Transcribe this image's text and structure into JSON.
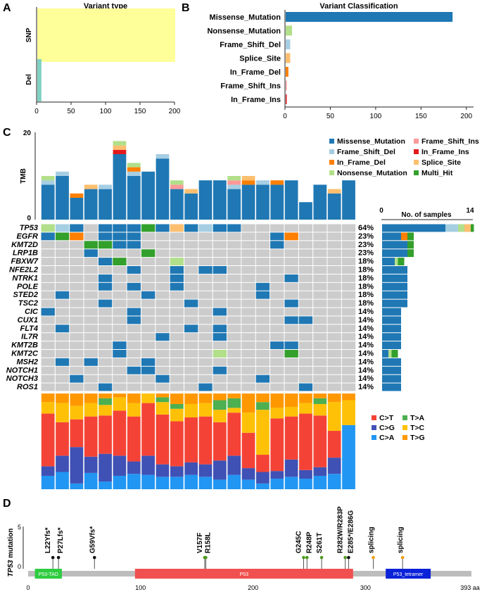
{
  "panel_letters": [
    "A",
    "B",
    "C",
    "D"
  ],
  "chart_data": [
    {
      "id": "variant_type",
      "type": "bar",
      "orientation": "horizontal",
      "title": "Variant type",
      "categories": [
        "SNP",
        "Del"
      ],
      "values": [
        200,
        6
      ],
      "colors": [
        "#ffff99",
        "#7fd1c2"
      ],
      "xlim": [
        0,
        200
      ],
      "xticks": [
        "0",
        "50",
        "100",
        "150",
        "200"
      ]
    },
    {
      "id": "variant_classification",
      "type": "bar",
      "orientation": "horizontal",
      "title": "Variant Classification",
      "categories": [
        "Missense_Mutation",
        "Nonsense_Mutation",
        "Frame_Shift_Del",
        "Splice_Site",
        "In_Frame_Del",
        "Frame_Shift_Ins",
        "In_Frame_Ins"
      ],
      "values": [
        184,
        7,
        5,
        5,
        3,
        1,
        1
      ],
      "colors": [
        "#1f78b4",
        "#b2df8a",
        "#a6cee3",
        "#fdbf6f",
        "#ff7f00",
        "#fb9a99",
        "#e31a1c"
      ],
      "xlim": [
        0,
        200
      ],
      "xticks": [
        "0",
        "50",
        "100",
        "150",
        "200"
      ]
    },
    {
      "id": "tmb",
      "type": "bar",
      "stacked": true,
      "ylabel": "TMB",
      "yticks": [
        "0",
        "20"
      ],
      "ylim": [
        0,
        20
      ],
      "samples": 22,
      "series": [
        {
          "name": "Missense_Mutation",
          "color": "#1f78b4",
          "values": [
            8,
            10,
            5,
            7,
            7,
            15,
            10,
            11,
            14,
            7,
            6,
            9,
            9,
            7,
            8,
            8,
            8,
            9,
            4,
            8,
            6,
            9
          ]
        },
        {
          "name": "Frame_Shift_Del",
          "color": "#a6cee3",
          "values": [
            1,
            1,
            0,
            0,
            1,
            0,
            1,
            0,
            1,
            0,
            0,
            0,
            0,
            1,
            0,
            1,
            0,
            0,
            0,
            0,
            0,
            0
          ]
        },
        {
          "name": "In_Frame_Del",
          "color": "#ff7f00",
          "values": [
            0,
            0,
            1,
            0,
            0,
            0,
            1,
            0,
            0,
            0,
            0,
            0,
            0,
            0,
            1,
            0,
            1,
            0,
            0,
            0,
            0,
            0
          ]
        },
        {
          "name": "Frame_Shift_Ins",
          "color": "#fb9a99",
          "values": [
            0,
            0,
            0,
            0,
            0,
            0,
            0,
            0,
            0,
            1,
            0,
            0,
            0,
            1,
            0,
            0,
            0,
            0,
            0,
            0,
            0,
            0
          ]
        },
        {
          "name": "In_Frame_Ins",
          "color": "#e31a1c",
          "values": [
            0,
            0,
            0,
            0,
            0,
            1,
            0,
            0,
            0,
            0,
            0,
            0,
            0,
            0,
            0,
            0,
            0,
            0,
            0,
            0,
            0,
            0
          ]
        },
        {
          "name": "Splice_Site",
          "color": "#fdbf6f",
          "values": [
            0,
            0,
            0,
            1,
            0,
            1,
            0,
            0,
            0,
            0,
            1,
            0,
            0,
            0,
            1,
            0,
            0,
            0,
            0,
            0,
            1,
            0
          ]
        },
        {
          "name": "Nonsense_Mutation",
          "color": "#b2df8a",
          "values": [
            1,
            0,
            0,
            0,
            0,
            1,
            1,
            0,
            0,
            1,
            0,
            0,
            0,
            1,
            0,
            0,
            0,
            0,
            0,
            0,
            0,
            0
          ]
        },
        {
          "name": "Multi_Hit",
          "color": "#33a02c",
          "values": [
            0,
            0,
            0,
            0,
            0,
            0,
            0,
            0,
            0,
            0,
            0,
            0,
            0,
            0,
            0,
            0,
            0,
            0,
            0,
            0,
            0,
            0
          ]
        }
      ],
      "legend": [
        "Missense_Mutation",
        "Frame_Shift_Ins",
        "Frame_Shift_Del",
        "In_Frame_Ins",
        "In_Frame_Del",
        "Splice_Site",
        "Nonsense_Mutation",
        "Multi_Hit"
      ]
    },
    {
      "id": "oncoplot",
      "type": "heatmap",
      "genes": [
        "TP53",
        "EGFR",
        "KMT2D",
        "LRP1B",
        "FBXW7",
        "NFE2L2",
        "NTRK1",
        "POLE",
        "STED2",
        "TSC2",
        "CIC",
        "CUX1",
        "FLT4",
        "IL7R",
        "KMT2B",
        "KMT2C",
        "MSH2",
        "NOTCH1",
        "NOTCH3",
        "ROS1"
      ],
      "percentages": [
        "64%",
        "23%",
        "23%",
        "23%",
        "18%",
        "18%",
        "18%",
        "18%",
        "18%",
        "18%",
        "14%",
        "14%",
        "14%",
        "14%",
        "14%",
        "14%",
        "14%",
        "14%",
        "14%",
        "14%"
      ],
      "cell_codes": {
        "0": "none",
        "1": "Missense_Mutation",
        "2": "Frame_Shift_Del",
        "3": "In_Frame_Del",
        "4": "Splice_Site",
        "5": "Nonsense_Mutation",
        "6": "Multi_Hit",
        "7": "Frame_Shift_Ins"
      },
      "code_colors": {
        "0": "#cccccc",
        "1": "#1f78b4",
        "2": "#a6cee3",
        "3": "#ff7f00",
        "4": "#fdbf6f",
        "5": "#b2df8a",
        "6": "#33a02c",
        "7": "#fb9a99"
      },
      "matrix": [
        [
          5,
          2,
          1,
          0,
          1,
          1,
          1,
          6,
          1,
          4,
          1,
          2,
          1,
          1,
          0,
          0,
          0,
          0,
          0,
          0,
          0,
          0
        ],
        [
          1,
          6,
          3,
          0,
          1,
          1,
          1,
          0,
          0,
          0,
          0,
          0,
          0,
          0,
          0,
          0,
          1,
          3,
          0,
          0,
          0,
          0
        ],
        [
          0,
          0,
          0,
          6,
          6,
          1,
          1,
          0,
          0,
          0,
          0,
          0,
          0,
          0,
          0,
          0,
          1,
          0,
          0,
          0,
          0,
          0
        ],
        [
          0,
          0,
          0,
          1,
          0,
          0,
          0,
          6,
          0,
          0,
          0,
          0,
          0,
          0,
          0,
          0,
          0,
          0,
          0,
          0,
          0,
          0
        ],
        [
          0,
          0,
          0,
          0,
          1,
          6,
          0,
          0,
          0,
          5,
          0,
          0,
          0,
          0,
          0,
          0,
          0,
          0,
          0,
          0,
          0,
          0
        ],
        [
          0,
          0,
          0,
          0,
          0,
          0,
          1,
          0,
          0,
          1,
          0,
          1,
          1,
          0,
          0,
          0,
          0,
          0,
          0,
          0,
          0,
          0
        ],
        [
          0,
          0,
          0,
          0,
          1,
          0,
          0,
          0,
          0,
          1,
          0,
          0,
          0,
          0,
          0,
          0,
          0,
          1,
          0,
          0,
          0,
          0
        ],
        [
          0,
          0,
          0,
          0,
          1,
          0,
          1,
          0,
          0,
          1,
          0,
          0,
          0,
          0,
          0,
          1,
          0,
          0,
          0,
          0,
          0,
          0
        ],
        [
          0,
          1,
          0,
          0,
          0,
          0,
          0,
          1,
          0,
          0,
          0,
          0,
          0,
          0,
          0,
          1,
          0,
          0,
          0,
          0,
          0,
          0
        ],
        [
          0,
          0,
          0,
          0,
          1,
          0,
          0,
          0,
          0,
          0,
          1,
          0,
          0,
          0,
          0,
          0,
          0,
          1,
          0,
          0,
          0,
          0
        ],
        [
          1,
          0,
          0,
          0,
          0,
          0,
          1,
          0,
          0,
          0,
          0,
          0,
          1,
          0,
          0,
          0,
          0,
          0,
          0,
          0,
          0,
          0
        ],
        [
          0,
          0,
          0,
          0,
          0,
          0,
          1,
          0,
          0,
          0,
          0,
          0,
          0,
          0,
          0,
          0,
          0,
          1,
          1,
          0,
          0,
          0
        ],
        [
          0,
          1,
          0,
          0,
          0,
          0,
          0,
          0,
          0,
          0,
          1,
          0,
          1,
          0,
          0,
          0,
          0,
          0,
          0,
          0,
          0,
          0
        ],
        [
          0,
          0,
          0,
          0,
          0,
          0,
          0,
          0,
          1,
          0,
          0,
          0,
          1,
          0,
          0,
          0,
          0,
          0,
          0,
          0,
          0,
          0
        ],
        [
          0,
          0,
          0,
          0,
          0,
          1,
          0,
          0,
          0,
          0,
          0,
          0,
          0,
          0,
          0,
          0,
          1,
          1,
          0,
          0,
          0,
          0
        ],
        [
          0,
          0,
          0,
          0,
          0,
          1,
          0,
          0,
          0,
          0,
          0,
          0,
          5,
          0,
          0,
          0,
          0,
          6,
          0,
          0,
          0,
          0
        ],
        [
          0,
          1,
          0,
          1,
          0,
          0,
          0,
          1,
          0,
          0,
          0,
          0,
          0,
          0,
          0,
          0,
          0,
          0,
          0,
          0,
          0,
          0
        ],
        [
          0,
          0,
          0,
          0,
          0,
          0,
          1,
          1,
          0,
          0,
          0,
          0,
          1,
          0,
          0,
          0,
          0,
          0,
          0,
          0,
          0,
          0
        ],
        [
          0,
          0,
          1,
          0,
          0,
          0,
          0,
          0,
          1,
          0,
          0,
          0,
          0,
          0,
          0,
          1,
          0,
          0,
          0,
          0,
          0,
          0
        ],
        [
          0,
          0,
          0,
          0,
          1,
          0,
          0,
          0,
          0,
          0,
          0,
          1,
          0,
          0,
          0,
          0,
          0,
          0,
          1,
          0,
          0,
          0
        ]
      ],
      "samples_bar": {
        "title": "No. of samples",
        "xticks": [
          "0",
          "14"
        ],
        "xlim": [
          0,
          14
        ],
        "counts": [
          {
            "Missense_Mutation": 10,
            "Frame_Shift_Del": 2,
            "Nonsense_Mutation": 1,
            "Splice_Site": 1,
            "Multi_Hit": 0.5
          },
          {
            "Missense_Mutation": 3,
            "Multi_Hit": 1,
            "In_Frame_Del": 1,
            "Frame_Shift_Del": 0
          },
          {
            "Missense_Mutation": 4,
            "Multi_Hit": 1
          },
          {
            "Missense_Mutation": 4,
            "Multi_Hit": 1
          },
          {
            "Missense_Mutation": 2,
            "Nonsense_Mutation": 0.5,
            "Multi_Hit": 1
          },
          {
            "Missense_Mutation": 4
          },
          {
            "Missense_Mutation": 4
          },
          {
            "Missense_Mutation": 4
          },
          {
            "Missense_Mutation": 4
          },
          {
            "Missense_Mutation": 4
          },
          {
            "Missense_Mutation": 3
          },
          {
            "Missense_Mutation": 3
          },
          {
            "Missense_Mutation": 3
          },
          {
            "Missense_Mutation": 3
          },
          {
            "Missense_Mutation": 3
          },
          {
            "Missense_Mutation": 1,
            "Nonsense_Mutation": 0.5,
            "Multi_Hit": 1
          },
          {
            "Missense_Mutation": 3
          },
          {
            "Missense_Mutation": 3
          },
          {
            "Missense_Mutation": 3
          },
          {
            "Missense_Mutation": 3
          }
        ]
      }
    },
    {
      "id": "titv",
      "type": "bar",
      "stacked": true,
      "percent": true,
      "samples": 22,
      "legend": [
        "C>T",
        "T>A",
        "C>G",
        "T>C",
        "C>A",
        "T>G"
      ],
      "colors": {
        "C>A": "#2196f3",
        "C>G": "#3f51b5",
        "C>T": "#f44336",
        "T>C": "#ffc107",
        "T>A": "#4caf50",
        "T>G": "#ff9800"
      },
      "series": [
        {
          "name": "C>A",
          "values": [
            14,
            18,
            6,
            17,
            8,
            14,
            16,
            15,
            13,
            13,
            15,
            13,
            10,
            15,
            10,
            6,
            11,
            13,
            11,
            14,
            16,
            67
          ]
        },
        {
          "name": "C>G",
          "values": [
            10,
            17,
            38,
            17,
            29,
            21,
            13,
            20,
            13,
            11,
            13,
            13,
            20,
            20,
            12,
            12,
            8,
            18,
            9,
            9,
            17,
            0
          ]
        },
        {
          "name": "C>T",
          "values": [
            55,
            35,
            29,
            42,
            40,
            47,
            47,
            55,
            52,
            47,
            47,
            50,
            40,
            45,
            37,
            18,
            55,
            45,
            59,
            54,
            28,
            0
          ]
        },
        {
          "name": "T>C",
          "values": [
            12,
            20,
            14,
            14,
            11,
            14,
            14,
            10,
            13,
            13,
            14,
            14,
            13,
            5,
            21,
            47,
            11,
            10,
            11,
            12,
            30,
            26
          ]
        },
        {
          "name": "T>A",
          "values": [
            0,
            0,
            0,
            0,
            7,
            0,
            0,
            0,
            5,
            5,
            0,
            0,
            10,
            10,
            0,
            8,
            0,
            0,
            0,
            6,
            0,
            0
          ]
        },
        {
          "name": "T>G",
          "values": [
            9,
            10,
            13,
            10,
            5,
            4,
            10,
            0,
            4,
            11,
            11,
            10,
            7,
            5,
            20,
            9,
            15,
            14,
            10,
            5,
            9,
            7
          ]
        }
      ]
    },
    {
      "id": "lollipop",
      "type": "scatter",
      "ylabel_gene": "TP53",
      "ylabel_rest": " mutation",
      "yticks": [
        "0",
        "5"
      ],
      "xlim": [
        0,
        393
      ],
      "xticks": [
        "0",
        "100",
        "200",
        "300"
      ],
      "x_end_label": "393 aa",
      "domains": [
        {
          "name": "P53-TAD",
          "start": 6,
          "end": 30,
          "color": "#2ecc40"
        },
        {
          "name": "P53",
          "start": 95,
          "end": 289,
          "color": "#f0504f"
        },
        {
          "name": "P53_tetramer",
          "start": 318,
          "end": 358,
          "color": "#0a22d8"
        }
      ],
      "mutations": [
        {
          "pos": 22,
          "count": 1,
          "color": "#111111",
          "label": "L22Yfs*"
        },
        {
          "pos": 27,
          "count": 1,
          "color": "#111111",
          "label": "P27Lfs*"
        },
        {
          "pos": 59,
          "count": 1,
          "color": "#111111",
          "label": "G59Vfs*"
        },
        {
          "pos": 157,
          "count": 1,
          "color": "#4e9a1e",
          "label": "V157F"
        },
        {
          "pos": 158,
          "count": 1,
          "color": "#4e9a1e",
          "label": "R158L"
        },
        {
          "pos": 245,
          "count": 1,
          "color": "#4e9a1e",
          "label": "G245C"
        },
        {
          "pos": 248,
          "count": 1,
          "color": "#4e9a1e",
          "label": "R248P"
        },
        {
          "pos": 261,
          "count": 1,
          "color": "#4e9a1e",
          "label": "S261T"
        },
        {
          "pos": 282,
          "count": 1,
          "color": "#4e9a1e",
          "label": "R282W/R283P"
        },
        {
          "pos": 285,
          "count": 1,
          "color": "#111111",
          "label": "E285*/E286G"
        },
        {
          "pos": 307,
          "count": 1,
          "color": "#f39c12",
          "label": "splicing"
        },
        {
          "pos": 333,
          "count": 1,
          "color": "#f39c12",
          "label": "splicing"
        }
      ]
    }
  ]
}
